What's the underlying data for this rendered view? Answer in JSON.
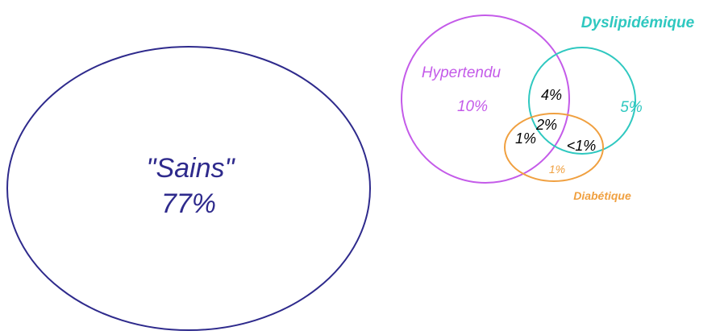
{
  "diagram": {
    "healthy": {
      "label": "\"Sains\"",
      "value": "77%"
    },
    "sets": {
      "hypertensive": {
        "label": "Hypertendu",
        "value": "10%"
      },
      "dyslipidemic": {
        "label": "Dyslipidémique",
        "value": "5%"
      },
      "diabetic": {
        "label": "Diabétique",
        "value": "1%"
      }
    },
    "overlaps": {
      "hypertensive_dyslipidemic": "4%",
      "all_three": "2%",
      "hypertensive_diabetic": "1%",
      "dyslipidemic_diabetic": "<1%"
    },
    "colors": {
      "healthy": "#2e2a8c",
      "hypertensive": "#c45be9",
      "dyslipidemic": "#2fc8c0",
      "diabetic": "#f0a040",
      "overlap_text": "#000000"
    }
  }
}
